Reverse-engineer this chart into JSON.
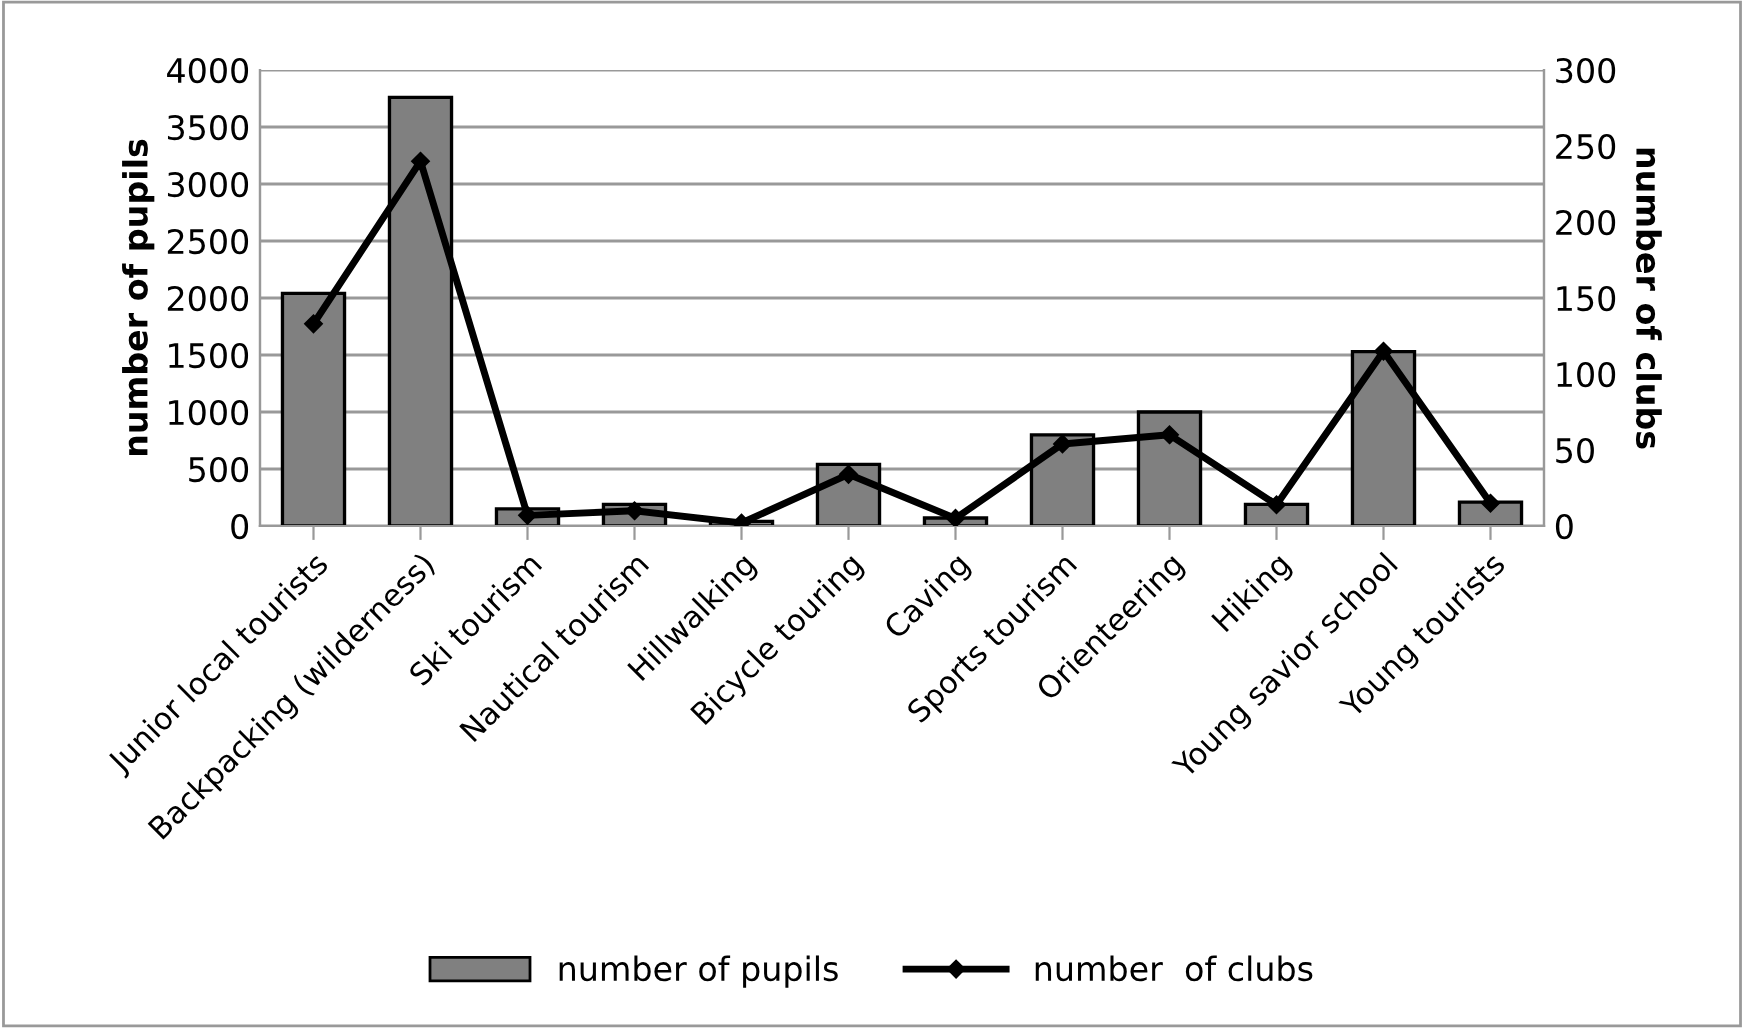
{
  "chart_data": {
    "type": "bar",
    "ylabel": "number of pupils",
    "y2label": "number of clubs",
    "categories": [
      "Junior local tourists",
      "Backpacking (wilderness)",
      "Ski tourism",
      "Nautical tourism",
      "Hillwalking",
      "Bicycle touring",
      "Caving",
      "Sports tourism",
      "Orienteering",
      "Hiking",
      "Young savior school",
      "Young tourists"
    ],
    "series": [
      {
        "name": "number of pupils",
        "color": "#808080",
        "values": [
          2040,
          3760,
          150,
          190,
          40,
          540,
          70,
          800,
          1000,
          190,
          1530,
          210
        ]
      },
      {
        "name": "number  of clubs",
        "type": "line",
        "axis": "y2",
        "color": "#000000",
        "marker": "diamond",
        "line_style": "solid",
        "values": [
          133,
          240,
          7,
          10,
          2,
          34,
          5,
          54,
          60,
          14,
          115,
          15
        ]
      }
    ],
    "ylim": [
      0,
      4000
    ],
    "yticks": [
      0,
      500,
      1000,
      1500,
      2000,
      2500,
      3000,
      3500,
      4000
    ],
    "y2lim": [
      0,
      300
    ],
    "y2ticks": [
      0,
      50,
      100,
      150,
      200,
      250,
      300
    ],
    "grid": "y",
    "legend": "bottom"
  }
}
